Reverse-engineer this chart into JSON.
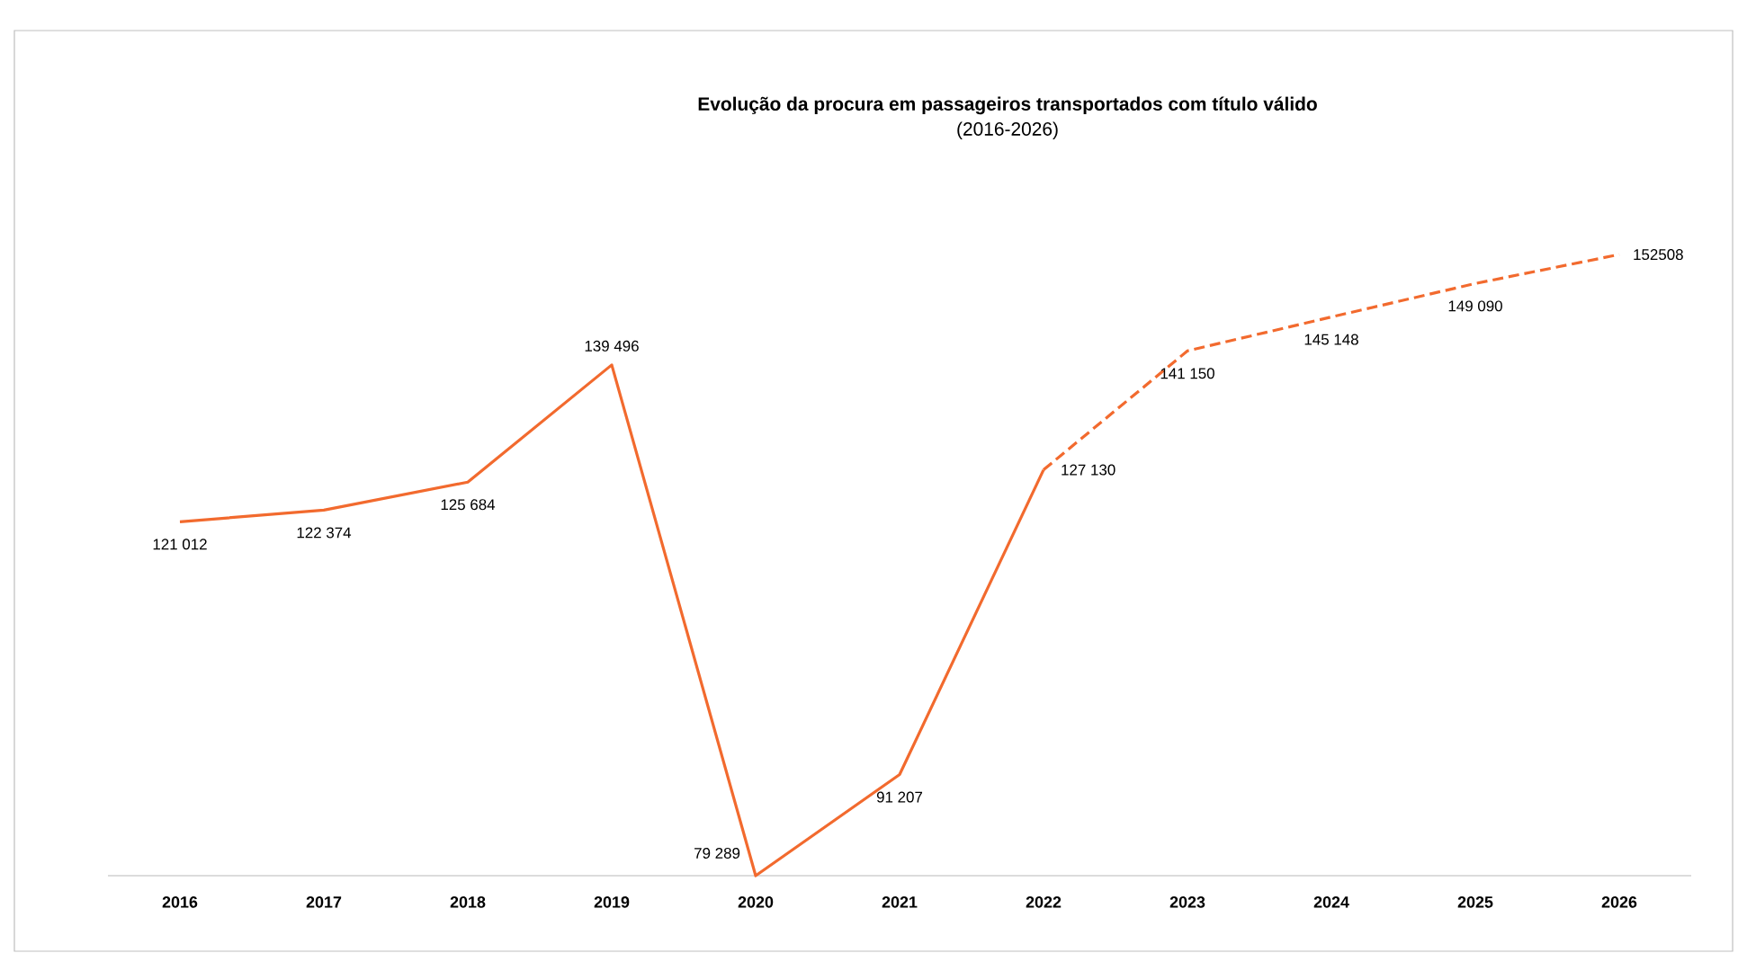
{
  "chart_data": {
    "type": "line",
    "title": "Evolução da procura em passageiros transportados com título válido",
    "subtitle": "(2016-2026)",
    "categories": [
      "2016",
      "2017",
      "2018",
      "2019",
      "2020",
      "2021",
      "2022",
      "2023",
      "2024",
      "2025",
      "2026"
    ],
    "series": [
      {
        "color": "#f26a2e",
        "line_style": "solid",
        "values": [
          121012,
          122374,
          125684,
          139496,
          79289,
          91207,
          127130,
          null,
          null,
          null,
          null
        ],
        "value_labels": [
          "121 012",
          "122 374",
          "125 684",
          "139 496",
          "79 289",
          "91 207",
          "127 130",
          null,
          null,
          null,
          null
        ]
      },
      {
        "color": "#f26a2e",
        "line_style": "dashed",
        "values": [
          null,
          null,
          null,
          null,
          null,
          null,
          127130,
          141150,
          145148,
          149090,
          152508
        ],
        "value_labels": [
          null,
          null,
          null,
          null,
          null,
          null,
          null,
          "141 150",
          "145 148",
          "149 090",
          "152508"
        ]
      }
    ],
    "grid": false,
    "marker": "none"
  }
}
